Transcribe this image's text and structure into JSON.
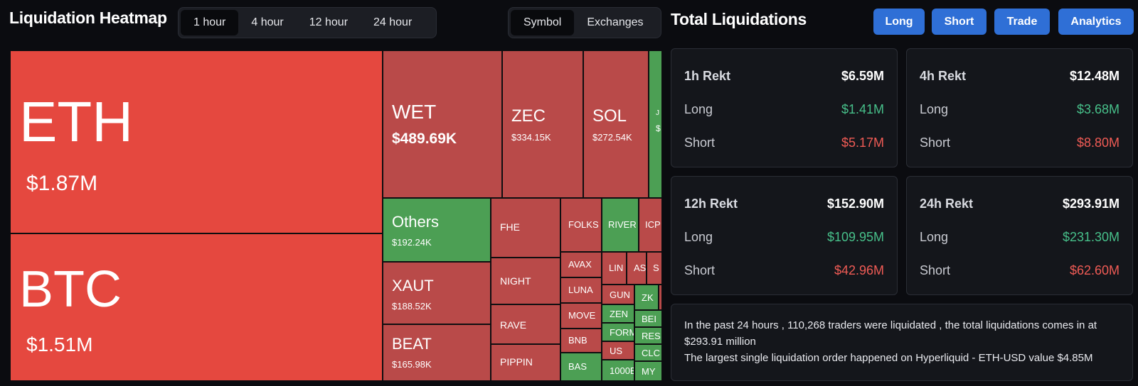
{
  "header": {
    "heatmap_title": "Liquidation Heatmap",
    "time_tabs": [
      {
        "label": "1 hour",
        "active": true
      },
      {
        "label": "4 hour",
        "active": false
      },
      {
        "label": "12 hour",
        "active": false
      },
      {
        "label": "24 hour",
        "active": false
      }
    ],
    "view_tabs": [
      {
        "label": "Symbol",
        "active": true
      },
      {
        "label": "Exchanges",
        "active": false
      }
    ],
    "totals_title": "Total Liquidations",
    "actions": [
      "Long",
      "Short",
      "Trade",
      "Analytics"
    ]
  },
  "colors": {
    "long_green": "#47c08a",
    "short_red": "#ef5b55",
    "tile_red": "#b94a49",
    "tile_red_strong": "#e5483f",
    "tile_green": "#4c9f54",
    "accent_blue": "#2f6fd6"
  },
  "heatmap": {
    "eth": {
      "symbol": "ETH",
      "value": "$1.87M"
    },
    "btc": {
      "symbol": "BTC",
      "value": "$1.51M"
    },
    "wet": {
      "symbol": "WET",
      "value": "$489.69K"
    },
    "zec": {
      "symbol": "ZEC",
      "value": "$334.15K"
    },
    "sol": {
      "symbol": "SOL",
      "value": "$272.54K"
    },
    "others": {
      "symbol": "Others",
      "value": "$192.24K"
    },
    "xaut": {
      "symbol": "XAUT",
      "value": "$188.52K"
    },
    "beat": {
      "symbol": "BEAT",
      "value": "$165.98K"
    },
    "small": {
      "fhe": "FHE",
      "night": "NIGHT",
      "rave": "RAVE",
      "pippin": "PIPPIN",
      "folks": "FOLKS",
      "river": "RIVER",
      "icp": "ICP",
      "avax": "AVAX",
      "luna": "LUNA",
      "move": "MOVE",
      "bnb": "BNB",
      "bas": "BAS",
      "lin": "LIN",
      "as": "AS",
      "s": "S",
      "gun": "GUN",
      "zen": "ZEN",
      "form": "FORM",
      "us": "US",
      "k1000": "1000B",
      "zk": "ZK",
      "ben": "BEI",
      "res": "RES",
      "clo": "CLC",
      "my": "MY",
      "j": "J",
      "jv": "$"
    }
  },
  "cards": [
    {
      "title": "1h Rekt",
      "total": "$6.59M",
      "long_label": "Long",
      "long": "$1.41M",
      "short_label": "Short",
      "short": "$5.17M"
    },
    {
      "title": "4h Rekt",
      "total": "$12.48M",
      "long_label": "Long",
      "long": "$3.68M",
      "short_label": "Short",
      "short": "$8.80M"
    },
    {
      "title": "12h Rekt",
      "total": "$152.90M",
      "long_label": "Long",
      "long": "$109.95M",
      "short_label": "Short",
      "short": "$42.96M"
    },
    {
      "title": "24h Rekt",
      "total": "$293.91M",
      "long_label": "Long",
      "long": "$231.30M",
      "short_label": "Short",
      "short": "$62.60M"
    }
  ],
  "summary": {
    "line1": "In the past 24 hours , 110,268 traders were liquidated , the total liquidations comes in at $293.91 million",
    "line2": "The largest single liquidation order happened on Hyperliquid - ETH-USD value $4.85M"
  }
}
